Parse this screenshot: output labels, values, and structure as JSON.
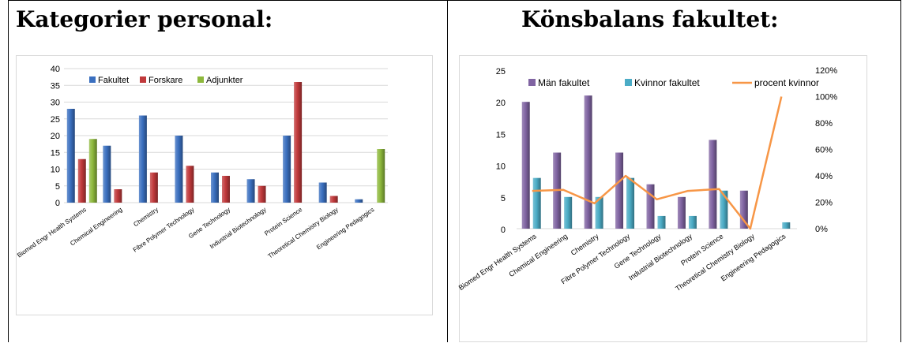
{
  "left": {
    "heading": "Kategorier personal:"
  },
  "right": {
    "heading": "Könsbalans fakultet:"
  },
  "chart_data": [
    {
      "type": "bar",
      "title": "",
      "categories": [
        "Biomed Engr Health Systems",
        "Chemical Engineering",
        "Chemistry",
        "Fibre Polymer Technology",
        "Gene Technology",
        "Industrial Biotechnology",
        "Protein Science",
        "Theoretical Chemistry Biology",
        "Engineering Pedagogics"
      ],
      "series": [
        {
          "name": "Fakultet",
          "color": "#3a6fbf",
          "values": [
            28,
            17,
            26,
            20,
            9,
            7,
            20,
            6,
            1
          ]
        },
        {
          "name": "Forskare",
          "color": "#c0393b",
          "values": [
            13,
            4,
            9,
            11,
            8,
            5,
            36,
            2,
            0
          ]
        },
        {
          "name": "Adjunkter",
          "color": "#8db83c",
          "values": [
            19,
            0,
            0,
            0,
            0,
            0,
            0,
            0,
            16
          ]
        }
      ],
      "yticks": [
        "0",
        "5",
        "10",
        "15",
        "20",
        "25",
        "30",
        "35",
        "40"
      ],
      "ylim": [
        0,
        40
      ],
      "grid": true,
      "legend": "top-left"
    },
    {
      "type": "bar",
      "title": "",
      "categories": [
        "Biomed Engr Health Systems",
        "Chemical Engineering",
        "Chemistry",
        "Fibre Polymer Technology",
        "Gene Technology",
        "Industrial Biotechnology",
        "Protein Science",
        "Theoretical Chemistry Biology",
        "Engineering Pedagogics"
      ],
      "series": [
        {
          "name": "Män fakultet",
          "color": "#8064a2",
          "values": [
            20,
            12,
            21,
            12,
            7,
            5,
            14,
            6,
            0
          ]
        },
        {
          "name": "Kvinnor fakultet",
          "color": "#4bacc6",
          "values": [
            8,
            5,
            5,
            8,
            2,
            2,
            6,
            0,
            1
          ]
        }
      ],
      "line_series": {
        "name": "procent kvinnor",
        "color": "#f79646",
        "axis": "right",
        "values": [
          0.286,
          0.294,
          0.192,
          0.4,
          0.222,
          0.286,
          0.3,
          0.0,
          1.0
        ]
      },
      "yticks": [
        "0",
        "5",
        "10",
        "15",
        "20",
        "25"
      ],
      "ylim": [
        0,
        25
      ],
      "y2ticks": [
        "0%",
        "20%",
        "40%",
        "60%",
        "80%",
        "100%",
        "120%"
      ],
      "y2lim": [
        0,
        1.2
      ],
      "grid": false,
      "legend": "top"
    }
  ]
}
